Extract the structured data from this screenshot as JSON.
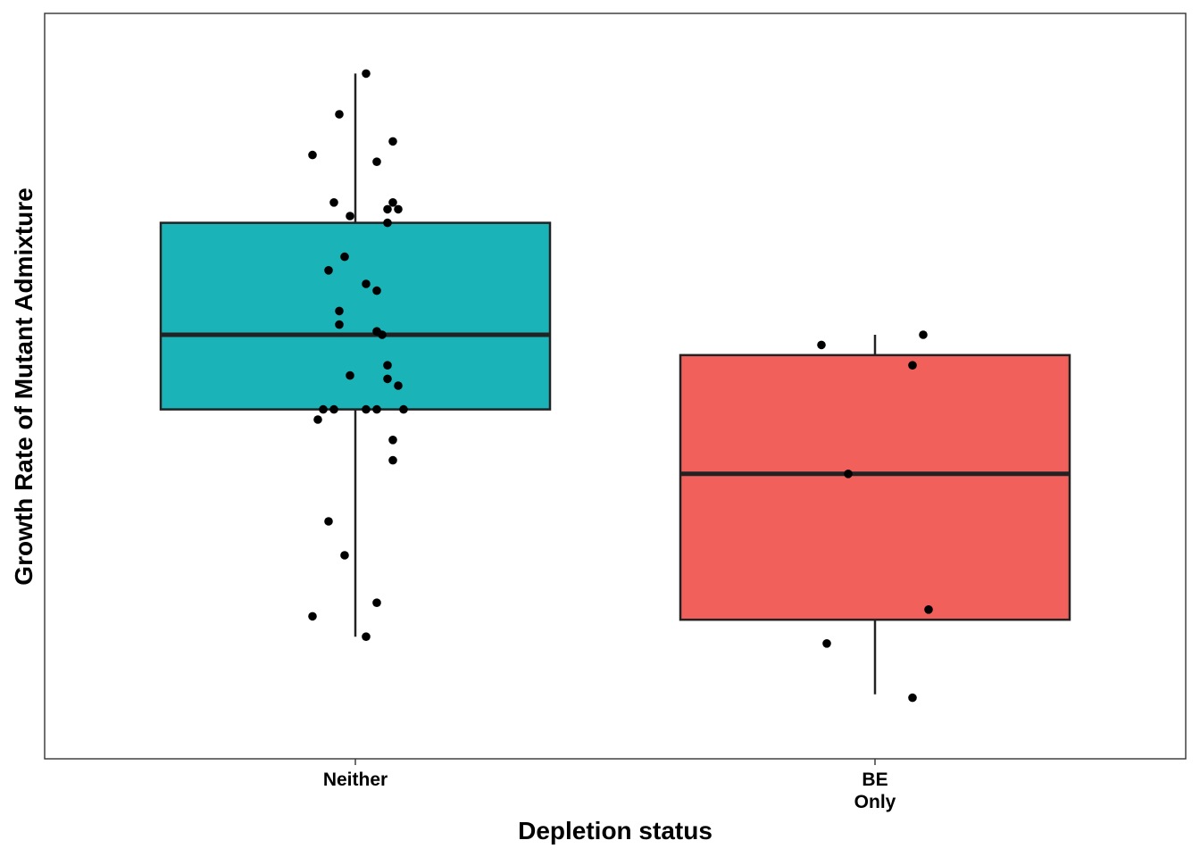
{
  "chart_data": {
    "type": "box",
    "title": "",
    "xlabel": "Depletion status",
    "ylabel": "Growth Rate of Mutant Admixture",
    "y_tick_labels_shown": false,
    "ylim": [
      0,
      1
    ],
    "categories": [
      {
        "label_lines": [
          "Neither"
        ],
        "fill": "#19B3B8"
      },
      {
        "label_lines": [
          "BE",
          "Only"
        ],
        "fill": "#F2605C"
      }
    ],
    "boxes": [
      {
        "whisker_low": 0.13,
        "q1": 0.465,
        "median": 0.575,
        "q3": 0.74,
        "whisker_high": 0.96
      },
      {
        "whisker_low": 0.045,
        "q1": 0.155,
        "median": 0.37,
        "q3": 0.545,
        "whisker_high": 0.575
      }
    ],
    "points": [
      [
        [
          0.02,
          0.96
        ],
        [
          -0.03,
          0.9
        ],
        [
          0.07,
          0.86
        ],
        [
          -0.08,
          0.84
        ],
        [
          0.04,
          0.83
        ],
        [
          -0.04,
          0.77
        ],
        [
          0.07,
          0.77
        ],
        [
          0.08,
          0.76
        ],
        [
          0.06,
          0.76
        ],
        [
          -0.01,
          0.75
        ],
        [
          0.06,
          0.74
        ],
        [
          -0.02,
          0.69
        ],
        [
          -0.05,
          0.67
        ],
        [
          0.02,
          0.65
        ],
        [
          0.04,
          0.64
        ],
        [
          -0.03,
          0.61
        ],
        [
          -0.03,
          0.59
        ],
        [
          0.04,
          0.58
        ],
        [
          0.05,
          0.575
        ],
        [
          0.06,
          0.53
        ],
        [
          -0.01,
          0.515
        ],
        [
          0.06,
          0.51
        ],
        [
          0.08,
          0.5
        ],
        [
          -0.06,
          0.465
        ],
        [
          -0.04,
          0.465
        ],
        [
          0.02,
          0.465
        ],
        [
          0.04,
          0.465
        ],
        [
          0.09,
          0.465
        ],
        [
          -0.07,
          0.45
        ],
        [
          0.07,
          0.42
        ],
        [
          0.07,
          0.39
        ],
        [
          -0.05,
          0.3
        ],
        [
          -0.02,
          0.25
        ],
        [
          0.04,
          0.18
        ],
        [
          -0.08,
          0.16
        ],
        [
          0.02,
          0.13
        ]
      ],
      [
        [
          0.09,
          0.575
        ],
        [
          -0.1,
          0.56
        ],
        [
          0.07,
          0.53
        ],
        [
          -0.05,
          0.37
        ],
        [
          0.1,
          0.17
        ],
        [
          -0.09,
          0.12
        ],
        [
          0.07,
          0.04
        ]
      ]
    ]
  }
}
